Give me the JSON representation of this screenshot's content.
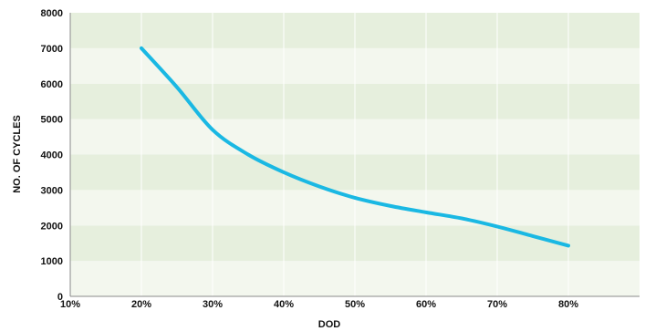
{
  "chart_data": {
    "type": "line",
    "title": "",
    "xlabel": "DOD",
    "ylabel": "NO. OF CYCLES",
    "x_categories": [
      "10%",
      "20%",
      "30%",
      "40%",
      "50%",
      "60%",
      "70%",
      "80%"
    ],
    "x_values": [
      10,
      20,
      30,
      40,
      50,
      60,
      70,
      80
    ],
    "xlim": [
      10,
      90
    ],
    "ylim": [
      0,
      8000
    ],
    "yticks": [
      0,
      1000,
      2000,
      3000,
      4000,
      5000,
      6000,
      7000,
      8000
    ],
    "grid": true,
    "colors": {
      "line": "#1ab8e3",
      "band_dark": "#e6efdd",
      "band_light": "#f3f7ee",
      "gridline": "#ffffff",
      "axis": "#8a8a8a",
      "text": "#111111"
    },
    "series": [
      {
        "values": [
          [
            20,
            7000
          ],
          [
            25,
            5900
          ],
          [
            30,
            4700
          ],
          [
            35,
            4000
          ],
          [
            40,
            3500
          ],
          [
            45,
            3100
          ],
          [
            50,
            2780
          ],
          [
            55,
            2550
          ],
          [
            60,
            2370
          ],
          [
            65,
            2200
          ],
          [
            70,
            1970
          ],
          [
            75,
            1700
          ],
          [
            80,
            1430
          ]
        ]
      }
    ]
  }
}
